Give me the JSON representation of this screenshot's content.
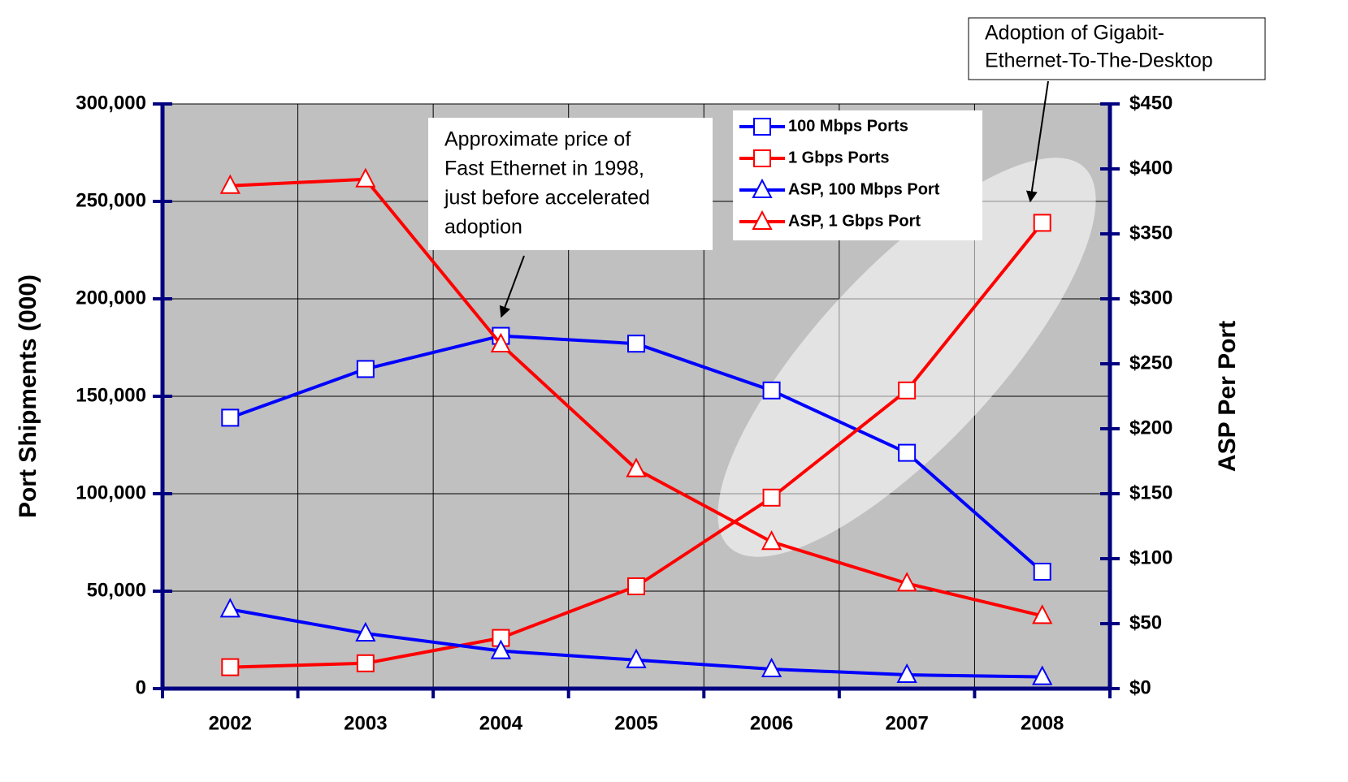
{
  "chart_data": {
    "type": "line",
    "categories": [
      "2002",
      "2003",
      "2004",
      "2005",
      "2006",
      "2007",
      "2008"
    ],
    "series": [
      {
        "name": "100 Mbps Ports",
        "color": "#0000ff",
        "marker": "square",
        "values": [
          139000,
          164000,
          181000,
          177000,
          153000,
          121000,
          60000
        ]
      },
      {
        "name": "1 Gbps Ports",
        "color": "#ff0000",
        "marker": "square",
        "values": [
          11000,
          13000,
          26000,
          52500,
          98000,
          153000,
          239000
        ]
      },
      {
        "name": "ASP, 100 Mbps Port",
        "color": "#0000ff",
        "marker": "triangle",
        "axis": "y2",
        "values": [
          61,
          42.5,
          29,
          22,
          15,
          10.6,
          9
        ]
      },
      {
        "name": "ASP, 1 Gbps Port",
        "color": "#ff0000",
        "marker": "triangle",
        "axis": "y2",
        "values": [
          387,
          392,
          265,
          169,
          113,
          81,
          56
        ]
      }
    ],
    "ylabel": "Port Shipments (000)",
    "y2label": "ASP Per Port",
    "ylim": [
      0,
      300000
    ],
    "yticks": [
      0,
      {
        "value": 50000,
        "label": "50,000"
      },
      {
        "value": 100000,
        "label": "100,000"
      },
      {
        "value": 150000,
        "label": "150,000"
      },
      {
        "value": 200000,
        "label": "200,000"
      },
      {
        "value": 250000,
        "label": "250,000"
      },
      {
        "value": 300000,
        "label": "300,000"
      }
    ],
    "y2lim": [
      0,
      450
    ],
    "y2ticks": [
      {
        "value": 0,
        "label": "$0"
      },
      {
        "value": 50,
        "label": "$50"
      },
      {
        "value": 100,
        "label": "$100"
      },
      {
        "value": 150,
        "label": "$150"
      },
      {
        "value": 200,
        "label": "$200"
      },
      {
        "value": 250,
        "label": "$250"
      },
      {
        "value": 300,
        "label": "$300"
      },
      {
        "value": 350,
        "label": "$350"
      },
      {
        "value": 400,
        "label": "$400"
      },
      {
        "value": 450,
        "label": "$450"
      }
    ],
    "grid": true,
    "annotations": [
      {
        "lines": [
          "Approximate price of",
          "Fast Ethernet in 1998,",
          "just before accelerated",
          "adoption"
        ]
      },
      {
        "lines": [
          "Adoption of Gigabit-",
          "Ethernet-To-The-Desktop"
        ]
      }
    ]
  }
}
